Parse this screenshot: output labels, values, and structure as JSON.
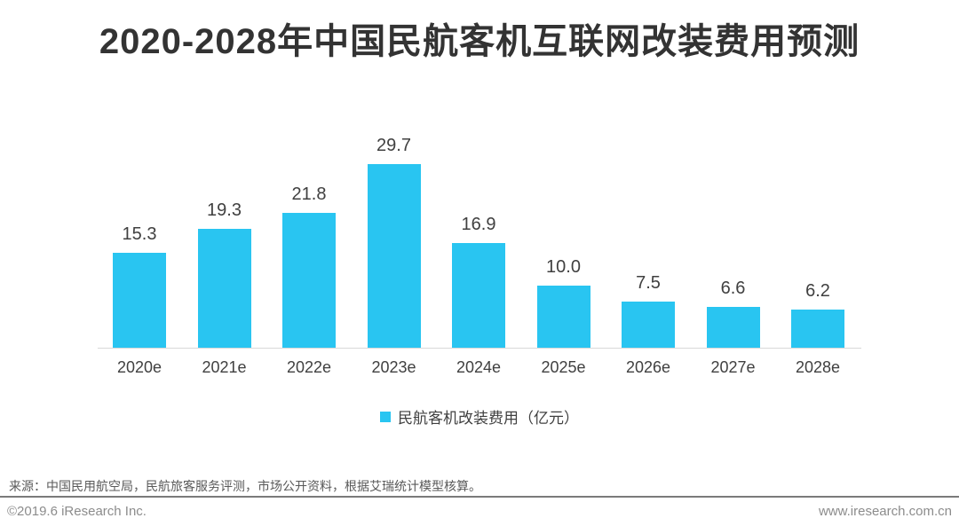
{
  "title": "2020-2028年中国民航客机互联网改装费用预测",
  "chart_data": {
    "type": "bar",
    "title": "2020-2028年中国民航客机互联网改装费用预测",
    "categories": [
      "2020e",
      "2021e",
      "2022e",
      "2023e",
      "2024e",
      "2025e",
      "2026e",
      "2027e",
      "2028e"
    ],
    "values": [
      15.3,
      19.3,
      21.8,
      29.7,
      16.9,
      10.0,
      7.5,
      6.6,
      6.2
    ],
    "series_name": "民航客机改装费用（亿元）",
    "xlabel": "",
    "ylabel": "亿元",
    "ylim": [
      0,
      32
    ],
    "grid": false,
    "value_labels": true,
    "legend_position": "bottom"
  },
  "legend": {
    "label": "民航客机改装费用（亿元）"
  },
  "source_note": "来源：中国民用航空局，民航旅客服务评测，市场公开资料，根据艾瑞统计模型核算。",
  "footer": {
    "copyright": "©2019.6 iResearch Inc.",
    "website": "www.iresearch.com.cn"
  },
  "colors": {
    "bar": "#29C5F1",
    "title_text": "#333333",
    "label_text": "#404040",
    "source_text": "#595959",
    "footer_text": "#8C8C8C",
    "axis_line": "#D9D9D9",
    "divider_line": "#7A7A7A"
  }
}
